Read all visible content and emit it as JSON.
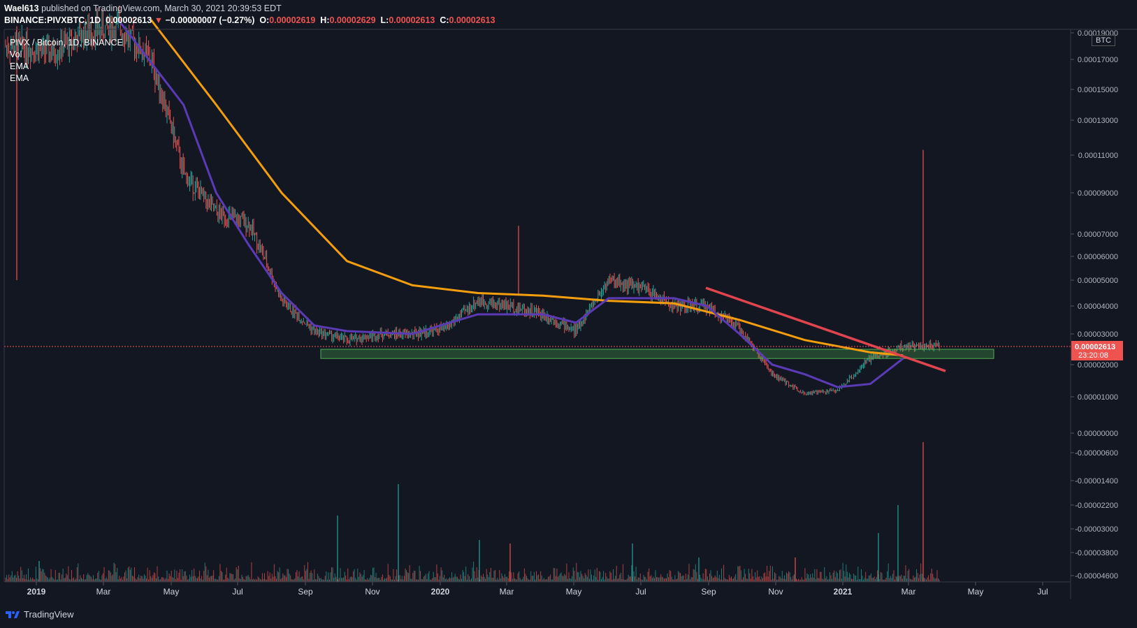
{
  "header": {
    "author": "Wael613",
    "published_text": "published on TradingView.com, March 30, 2021 20:39:53 EDT",
    "symbol_line_prefix": "BINANCE:PIVXBTC, 1D",
    "last": "0.00002613",
    "arrow": "▼",
    "change": "−0.00000007 (−0.27%)",
    "o_label": "O:",
    "o": "0.00002619",
    "h_label": "H:",
    "h": "0.00002629",
    "l_label": "L:",
    "l": "0.00002613",
    "c_label": "C:",
    "c": "0.00002613"
  },
  "legend": {
    "title": "PIVX / Bitcoin, 1D, BINANCE",
    "vol": "Vol",
    "ema1": "EMA",
    "ema2": "EMA"
  },
  "price_axis": {
    "unit_badge": "BTC",
    "last_price_label": "0.00002613",
    "countdown_label": "23:20:08"
  },
  "footer": {
    "brand": "TradingView"
  },
  "colors": {
    "background": "#131722",
    "up": "#26a69a",
    "down": "#ef5350",
    "ema_fast": "#5b3bb5",
    "ema_slow": "#f59e0b",
    "trendline": "#e0454f",
    "support_zone": "#4caf50"
  },
  "chart_data": {
    "type": "candlestick",
    "symbol": "PIVX / Bitcoin",
    "timeframe": "1D",
    "exchange": "BINANCE",
    "x_tick_labels": [
      "2019",
      "Mar",
      "May",
      "Jul",
      "Sep",
      "Nov",
      "2020",
      "Mar",
      "May",
      "Jul",
      "Sep",
      "Nov",
      "2021",
      "Mar",
      "May",
      "Jul"
    ],
    "y_tick_labels": [
      "0.00019000",
      "0.00017000",
      "0.00015000",
      "0.00013000",
      "0.00011000",
      "0.00009000",
      "0.00007000",
      "0.00006000",
      "0.00005000",
      "0.00004000",
      "0.00003000",
      "0.00002000",
      "0.00001000",
      "0.00000000",
      "-0.00000600",
      "-0.00001400",
      "-0.00002200",
      "-0.00003000",
      "-0.00003800",
      "-0.00004600"
    ],
    "last_price": 2.613e-05,
    "price_path": [
      {
        "date": "2018-12",
        "close": 0.00018
      },
      {
        "date": "2019-01",
        "close": 0.000175
      },
      {
        "date": "2019-02",
        "close": 0.00019
      },
      {
        "date": "2019-03",
        "close": 0.000195
      },
      {
        "date": "2019-04",
        "close": 0.00017
      },
      {
        "date": "2019-05",
        "close": 0.0001
      },
      {
        "date": "2019-06",
        "close": 8e-05
      },
      {
        "date": "2019-07",
        "close": 7.5e-05
      },
      {
        "date": "2019-08",
        "close": 4.2e-05
      },
      {
        "date": "2019-09",
        "close": 3.1e-05
      },
      {
        "date": "2019-10",
        "close": 2.8e-05
      },
      {
        "date": "2019-11",
        "close": 3e-05
      },
      {
        "date": "2019-12",
        "close": 3e-05
      },
      {
        "date": "2020-01",
        "close": 3.2e-05
      },
      {
        "date": "2020-02",
        "close": 4.2e-05
      },
      {
        "date": "2020-03",
        "close": 4e-05
      },
      {
        "date": "2020-04",
        "close": 3.7e-05
      },
      {
        "date": "2020-05",
        "close": 3.1e-05
      },
      {
        "date": "2020-06",
        "close": 5e-05
      },
      {
        "date": "2020-07",
        "close": 4.7e-05
      },
      {
        "date": "2020-08",
        "close": 4e-05
      },
      {
        "date": "2020-09",
        "close": 4e-05
      },
      {
        "date": "2020-10",
        "close": 3.2e-05
      },
      {
        "date": "2020-11",
        "close": 1.7e-05
      },
      {
        "date": "2020-12",
        "close": 1.1e-05
      },
      {
        "date": "2021-01",
        "close": 1.2e-05
      },
      {
        "date": "2021-02",
        "close": 2.2e-05
      },
      {
        "date": "2021-03",
        "close": 2.6e-05
      }
    ],
    "ema_fast_path": [
      {
        "date": "2019-03",
        "value": 0.0002
      },
      {
        "date": "2019-05",
        "value": 0.00014
      },
      {
        "date": "2019-06",
        "value": 9e-05
      },
      {
        "date": "2019-07",
        "value": 6.5e-05
      },
      {
        "date": "2019-08",
        "value": 4.5e-05
      },
      {
        "date": "2019-09",
        "value": 3.3e-05
      },
      {
        "date": "2019-10",
        "value": 3.1e-05
      },
      {
        "date": "2019-12",
        "value": 3e-05
      },
      {
        "date": "2020-02",
        "value": 3.7e-05
      },
      {
        "date": "2020-04",
        "value": 3.7e-05
      },
      {
        "date": "2020-05",
        "value": 3.4e-05
      },
      {
        "date": "2020-06",
        "value": 4.3e-05
      },
      {
        "date": "2020-08",
        "value": 4.3e-05
      },
      {
        "date": "2020-09",
        "value": 4e-05
      },
      {
        "date": "2020-10",
        "value": 3e-05
      },
      {
        "date": "2020-11",
        "value": 2e-05
      },
      {
        "date": "2020-12",
        "value": 1.7e-05
      },
      {
        "date": "2021-01",
        "value": 1.3e-05
      },
      {
        "date": "2021-02",
        "value": 1.4e-05
      },
      {
        "date": "2021-03",
        "value": 2.2e-05
      }
    ],
    "ema_slow_path": [
      {
        "date": "2019-04",
        "value": 0.0002
      },
      {
        "date": "2019-06",
        "value": 0.00014
      },
      {
        "date": "2019-08",
        "value": 9e-05
      },
      {
        "date": "2019-10",
        "value": 5.8e-05
      },
      {
        "date": "2019-12",
        "value": 4.8e-05
      },
      {
        "date": "2020-02",
        "value": 4.5e-05
      },
      {
        "date": "2020-04",
        "value": 4.4e-05
      },
      {
        "date": "2020-06",
        "value": 4.2e-05
      },
      {
        "date": "2020-08",
        "value": 4.1e-05
      },
      {
        "date": "2020-10",
        "value": 3.5e-05
      },
      {
        "date": "2020-12",
        "value": 2.8e-05
      },
      {
        "date": "2021-02",
        "value": 2.4e-05
      },
      {
        "date": "2021-03",
        "value": 2.3e-05
      }
    ],
    "support_zone": {
      "from_date": "2019-09",
      "to_date": "2021-05",
      "low": 2.2e-05,
      "high": 2.5e-05
    },
    "trendline": {
      "start": {
        "date": "2020-09",
        "value": 4.7e-05
      },
      "end": {
        "date": "2021-04",
        "value": 1.8e-05
      }
    },
    "spike": {
      "date": "2021-03",
      "high": 0.000113
    }
  }
}
